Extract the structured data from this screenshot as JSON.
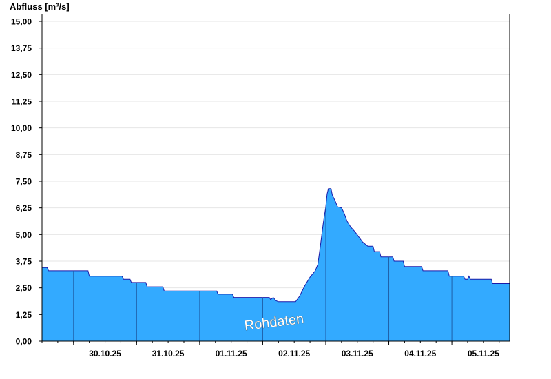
{
  "chart_data": {
    "type": "area",
    "ylabel": "Abfluss [m³/s]",
    "ylim": [
      0,
      15
    ],
    "yticks": [
      "0,00",
      "1,25",
      "2,50",
      "3,75",
      "5,00",
      "6,25",
      "7,50",
      "8,75",
      "10,00",
      "11,25",
      "12,50",
      "13,75",
      "15,00"
    ],
    "xlim": [
      "2025-10-29T12:00",
      "2025-11-05T22:00"
    ],
    "day_boundaries": [
      "2025-10-30T00:00",
      "2025-10-31T00:00",
      "2025-11-01T00:00",
      "2025-11-02T00:00",
      "2025-11-03T00:00",
      "2025-11-04T00:00",
      "2025-11-05T00:00"
    ],
    "xtick_labels": [
      {
        "t": "2025-10-30T12:00",
        "label": "30.10.25"
      },
      {
        "t": "2025-10-31T12:00",
        "label": "31.10.25"
      },
      {
        "t": "2025-11-01T12:00",
        "label": "01.11.25"
      },
      {
        "t": "2025-11-02T12:00",
        "label": "02.11.25"
      },
      {
        "t": "2025-11-03T12:00",
        "label": "03.11.25"
      },
      {
        "t": "2025-11-04T12:00",
        "label": "04.11.25"
      },
      {
        "t": "2025-11-05T12:00",
        "label": "05.11.25"
      }
    ],
    "grid": "horizontal",
    "series": [
      {
        "color": "#33aaff",
        "points": [
          [
            "2025-10-29T12:00",
            3.45
          ],
          [
            "2025-10-29T14:00",
            3.45
          ],
          [
            "2025-10-29T14:30",
            3.3
          ],
          [
            "2025-10-30T05:30",
            3.3
          ],
          [
            "2025-10-30T06:00",
            3.05
          ],
          [
            "2025-10-30T18:30",
            3.05
          ],
          [
            "2025-10-30T19:00",
            2.9
          ],
          [
            "2025-10-30T21:30",
            2.9
          ],
          [
            "2025-10-30T22:00",
            2.75
          ],
          [
            "2025-10-31T03:30",
            2.75
          ],
          [
            "2025-10-31T04:00",
            2.55
          ],
          [
            "2025-10-31T10:00",
            2.55
          ],
          [
            "2025-10-31T10:30",
            2.35
          ],
          [
            "2025-11-01T06:30",
            2.35
          ],
          [
            "2025-11-01T07:00",
            2.2
          ],
          [
            "2025-11-01T12:30",
            2.2
          ],
          [
            "2025-11-01T13:00",
            2.05
          ],
          [
            "2025-11-02T02:30",
            2.05
          ],
          [
            "2025-11-02T03:00",
            1.95
          ],
          [
            "2025-11-02T04:00",
            2.05
          ],
          [
            "2025-11-02T05:00",
            1.9
          ],
          [
            "2025-11-02T06:00",
            1.85
          ],
          [
            "2025-11-02T12:30",
            1.85
          ],
          [
            "2025-11-02T14:00",
            2.1
          ],
          [
            "2025-11-02T16:00",
            2.6
          ],
          [
            "2025-11-02T18:00",
            3.0
          ],
          [
            "2025-11-02T20:00",
            3.3
          ],
          [
            "2025-11-02T21:00",
            3.6
          ],
          [
            "2025-11-02T22:00",
            4.5
          ],
          [
            "2025-11-02T23:00",
            5.5
          ],
          [
            "2025-11-03T00:00",
            6.3
          ],
          [
            "2025-11-03T00:30",
            6.9
          ],
          [
            "2025-11-03T01:00",
            7.15
          ],
          [
            "2025-11-03T02:00",
            7.15
          ],
          [
            "2025-11-03T02:30",
            6.85
          ],
          [
            "2025-11-03T03:30",
            6.6
          ],
          [
            "2025-11-03T04:30",
            6.3
          ],
          [
            "2025-11-03T06:00",
            6.25
          ],
          [
            "2025-11-03T07:00",
            6.0
          ],
          [
            "2025-11-03T08:00",
            5.65
          ],
          [
            "2025-11-03T09:30",
            5.35
          ],
          [
            "2025-11-03T11:00",
            5.15
          ],
          [
            "2025-11-03T12:30",
            4.9
          ],
          [
            "2025-11-03T14:00",
            4.65
          ],
          [
            "2025-11-03T16:00",
            4.45
          ],
          [
            "2025-11-03T18:00",
            4.45
          ],
          [
            "2025-11-03T18:30",
            4.2
          ],
          [
            "2025-11-03T20:30",
            4.2
          ],
          [
            "2025-11-03T21:00",
            3.95
          ],
          [
            "2025-11-04T01:30",
            3.95
          ],
          [
            "2025-11-04T02:00",
            3.75
          ],
          [
            "2025-11-04T05:30",
            3.75
          ],
          [
            "2025-11-04T06:00",
            3.5
          ],
          [
            "2025-11-04T12:30",
            3.5
          ],
          [
            "2025-11-04T13:00",
            3.3
          ],
          [
            "2025-11-04T22:30",
            3.3
          ],
          [
            "2025-11-04T23:00",
            3.05
          ],
          [
            "2025-11-05T04:30",
            3.05
          ],
          [
            "2025-11-05T05:00",
            2.9
          ],
          [
            "2025-11-05T06:00",
            2.9
          ],
          [
            "2025-11-05T06:30",
            3.05
          ],
          [
            "2025-11-05T07:00",
            2.9
          ],
          [
            "2025-11-05T15:00",
            2.9
          ],
          [
            "2025-11-05T15:30",
            2.7
          ],
          [
            "2025-11-05T22:00",
            2.7
          ]
        ]
      }
    ],
    "watermark": "Rohdaten"
  }
}
